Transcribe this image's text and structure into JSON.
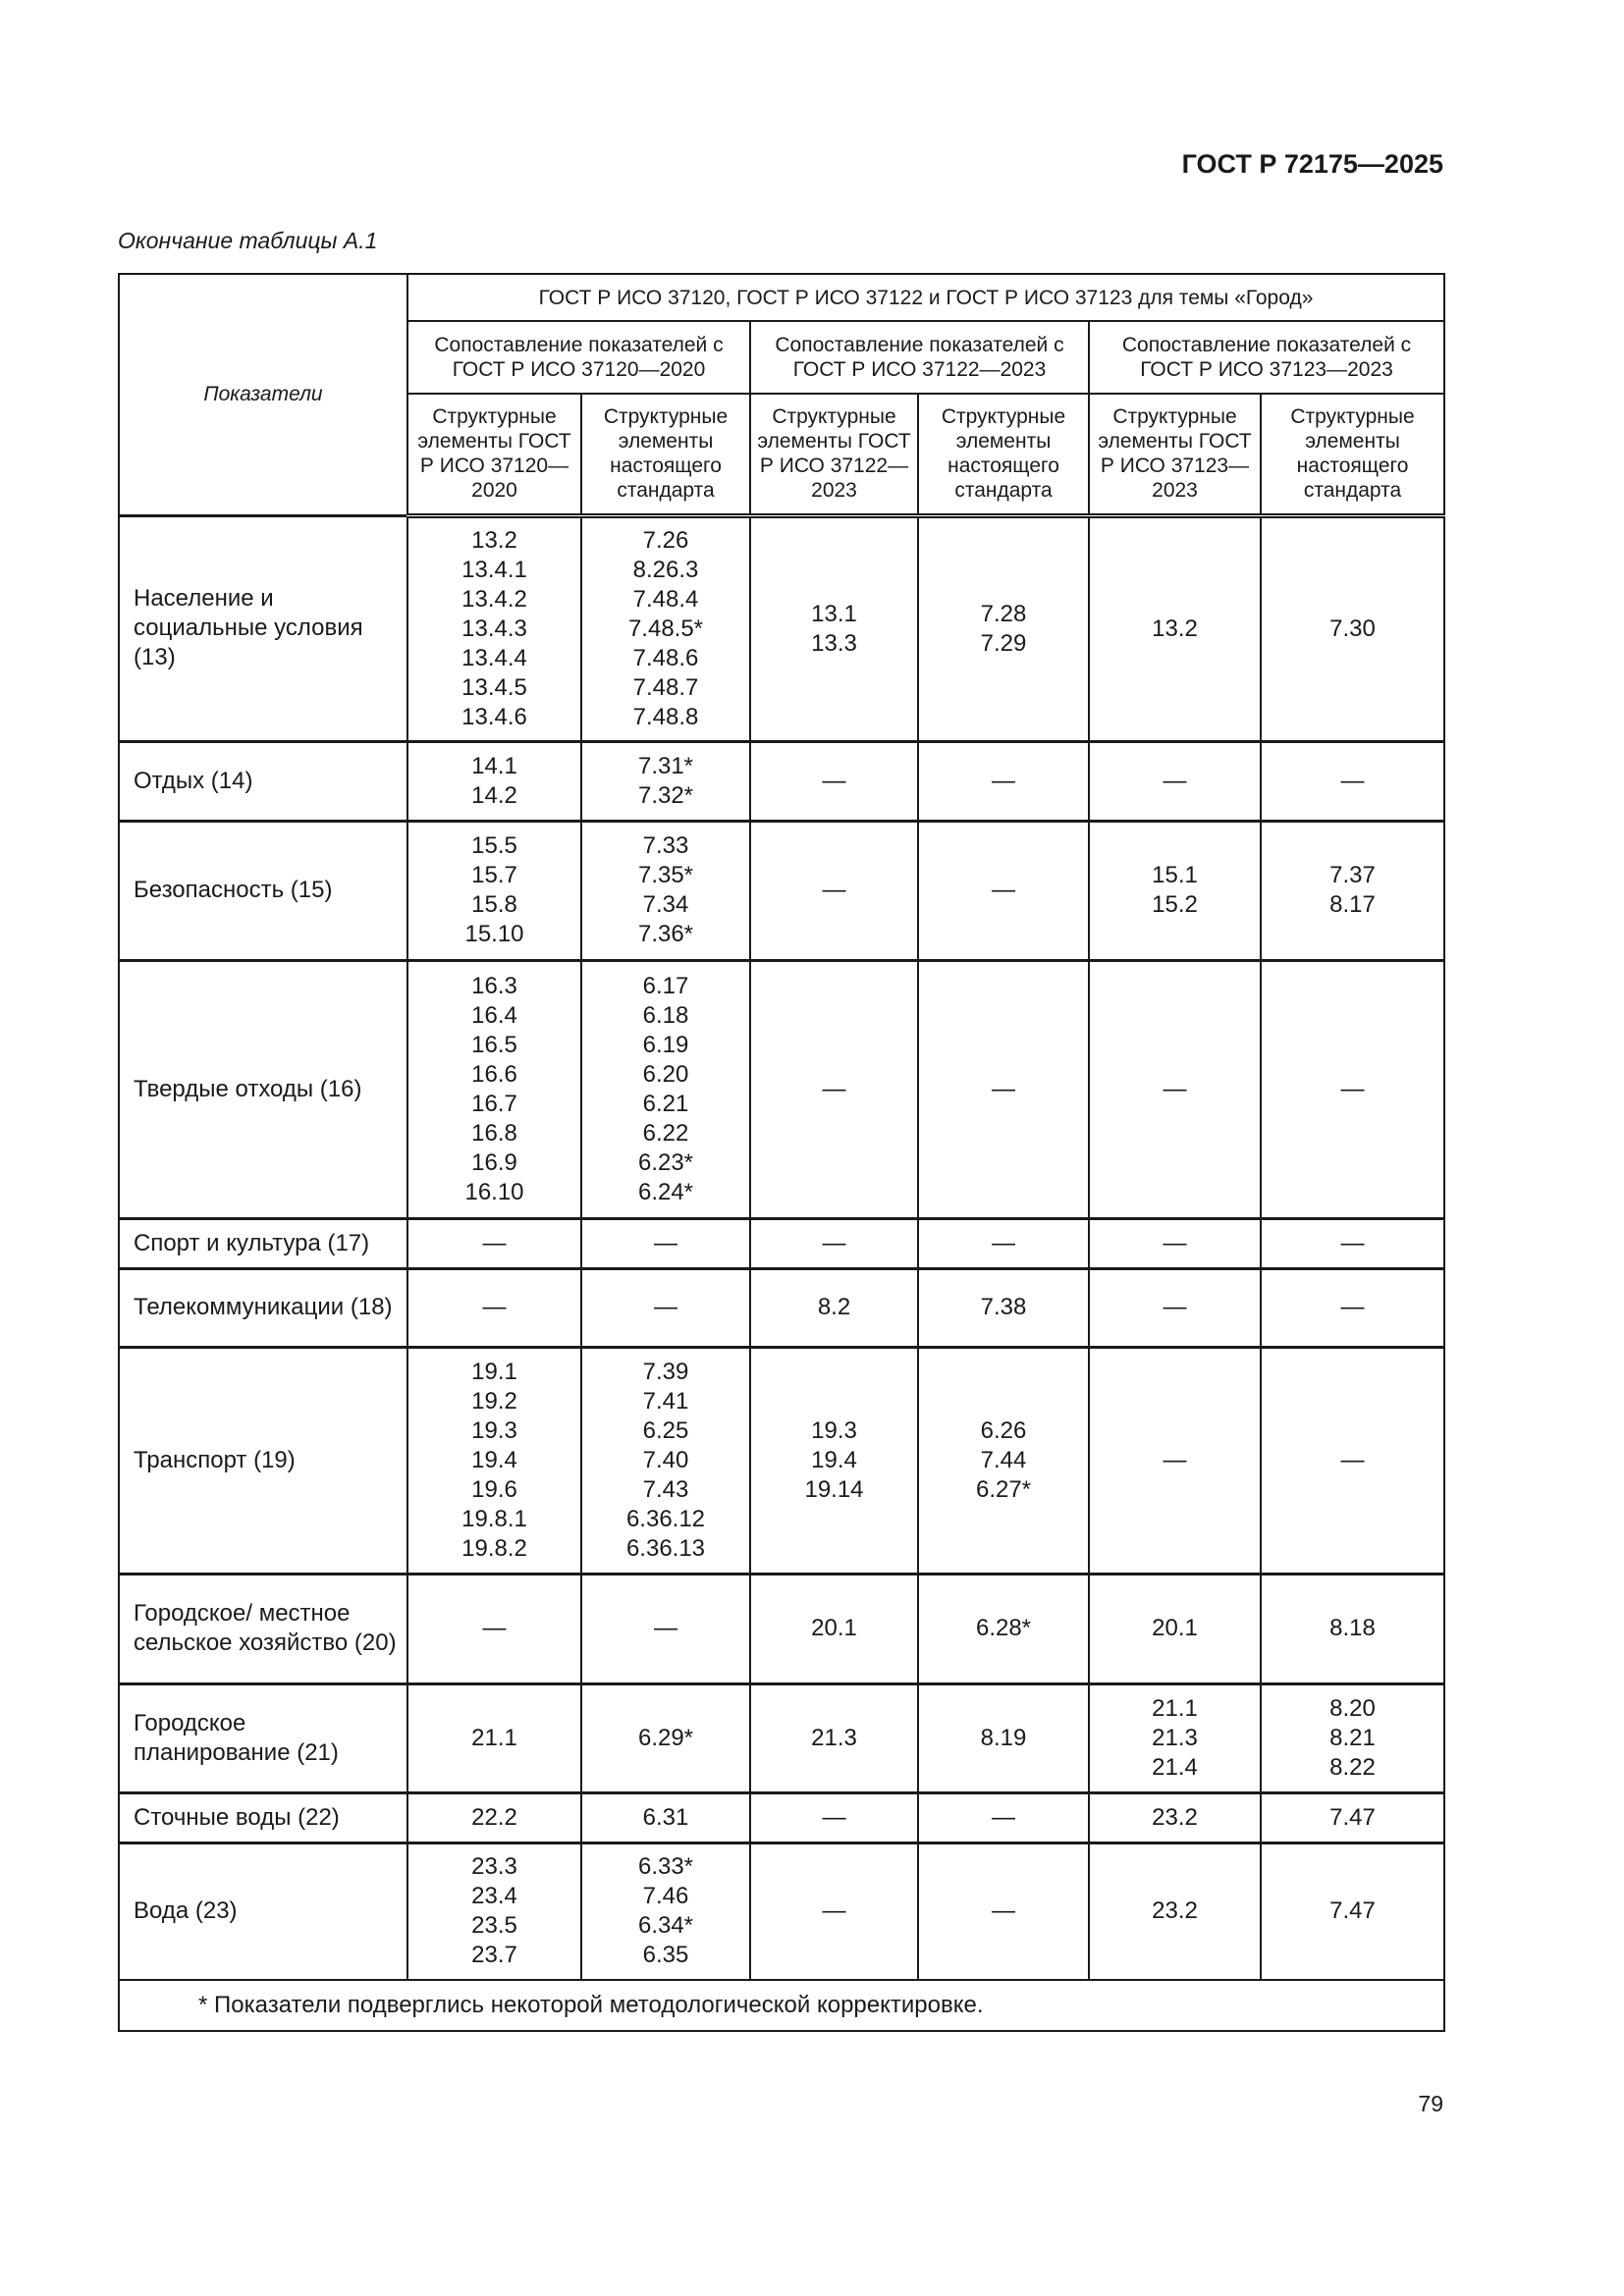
{
  "header": {
    "doc_code": "ГОСТ Р 72175—2025",
    "caption": "Окончание таблицы А.1"
  },
  "table": {
    "indicators_header": "Показатели",
    "group_header": "ГОСТ Р ИСО 37120, ГОСТ Р ИСО 37122 и ГОСТ Р ИСО 37123 для темы «Город»",
    "comparisons": [
      "Сопоставление показателей с ГОСТ Р ИСО 37120—2020",
      "Сопоставление показателей с ГОСТ Р ИСО 37122—2023",
      "Сопоставление показателей с ГОСТ Р ИСО 37123—2023"
    ],
    "columns": [
      "Структурные элементы ГОСТ Р ИСО 37120—2020",
      "Структурные элементы настоящего стандарта",
      "Структурные элементы ГОСТ Р ИСО 37122—2023",
      "Структурные элементы настоящего стандарта",
      "Структурные элементы ГОСТ Р ИСО 37123—2023",
      "Структурные элементы настоящего стандарта"
    ],
    "rows": [
      {
        "name": "Население и социальные условия (13)",
        "cells": [
          [
            "13.2",
            "13.4.1",
            "13.4.2",
            "13.4.3",
            "13.4.4",
            "13.4.5",
            "13.4.6"
          ],
          [
            "7.26",
            "8.26.3",
            "7.48.4",
            "7.48.5*",
            "7.48.6",
            "7.48.7",
            "7.48.8"
          ],
          [
            "13.1",
            "13.3"
          ],
          [
            "7.28",
            "7.29"
          ],
          [
            "13.2"
          ],
          [
            "7.30"
          ]
        ]
      },
      {
        "name": "Отдых (14)",
        "cells": [
          [
            "14.1",
            "14.2"
          ],
          [
            "7.31*",
            "7.32*"
          ],
          [
            "—"
          ],
          [
            "—"
          ],
          [
            "—"
          ],
          [
            "—"
          ]
        ]
      },
      {
        "name": "Безопасность (15)",
        "cells": [
          [
            "15.5",
            "15.7",
            "15.8",
            "15.10"
          ],
          [
            "7.33",
            "7.35*",
            "7.34",
            "7.36*"
          ],
          [
            "—"
          ],
          [
            "—"
          ],
          [
            "15.1",
            "15.2"
          ],
          [
            "7.37",
            "8.17"
          ]
        ]
      },
      {
        "name": "Твердые отходы (16)",
        "cells": [
          [
            "16.3",
            "16.4",
            "16.5",
            "16.6",
            "16.7",
            "16.8",
            "16.9",
            "16.10"
          ],
          [
            "6.17",
            "6.18",
            "6.19",
            "6.20",
            "6.21",
            "6.22",
            "6.23*",
            "6.24*"
          ],
          [
            "—"
          ],
          [
            "—"
          ],
          [
            "—"
          ],
          [
            "—"
          ]
        ]
      },
      {
        "name": "Спорт и культура (17)",
        "cells": [
          [
            "—"
          ],
          [
            "—"
          ],
          [
            "—"
          ],
          [
            "—"
          ],
          [
            "—"
          ],
          [
            "—"
          ]
        ]
      },
      {
        "name": "Телекоммуникации (18)",
        "cells": [
          [
            "—"
          ],
          [
            "—"
          ],
          [
            "8.2"
          ],
          [
            "7.38"
          ],
          [
            "—"
          ],
          [
            "—"
          ]
        ]
      },
      {
        "name": "Транспорт (19)",
        "cells": [
          [
            "19.1",
            "19.2",
            "19.3",
            "19.4",
            "19.6",
            "19.8.1",
            "19.8.2"
          ],
          [
            "7.39",
            "7.41",
            "6.25",
            "7.40",
            "7.43",
            "6.36.12",
            "6.36.13"
          ],
          [
            "19.3",
            "19.4",
            "19.14"
          ],
          [
            "6.26",
            "7.44",
            "6.27*"
          ],
          [
            "—"
          ],
          [
            "—"
          ]
        ]
      },
      {
        "name": "Городское/ местное сельское хозяйство (20)",
        "cells": [
          [
            "—"
          ],
          [
            "—"
          ],
          [
            "20.1"
          ],
          [
            "6.28*"
          ],
          [
            "20.1"
          ],
          [
            "8.18"
          ]
        ]
      },
      {
        "name": "Городское планирование (21)",
        "cells": [
          [
            "21.1"
          ],
          [
            "6.29*"
          ],
          [
            "21.3"
          ],
          [
            "8.19"
          ],
          [
            "21.1",
            "21.3",
            "21.4"
          ],
          [
            "8.20",
            "8.21",
            "8.22"
          ]
        ]
      },
      {
        "name": "Сточные воды (22)",
        "cells": [
          [
            "22.2"
          ],
          [
            "6.31"
          ],
          [
            "—"
          ],
          [
            "—"
          ],
          [
            "23.2"
          ],
          [
            "7.47"
          ]
        ]
      },
      {
        "name": "Вода (23)",
        "cells": [
          [
            "23.3",
            "23.4",
            "23.5",
            "23.7"
          ],
          [
            "6.33*",
            "7.46",
            "6.34*",
            "6.35"
          ],
          [
            "—"
          ],
          [
            "—"
          ],
          [
            "23.2"
          ],
          [
            "7.47"
          ]
        ]
      }
    ],
    "footnote": "*  Показатели подверглись некоторой методологической корректировке."
  },
  "page_number": "79"
}
